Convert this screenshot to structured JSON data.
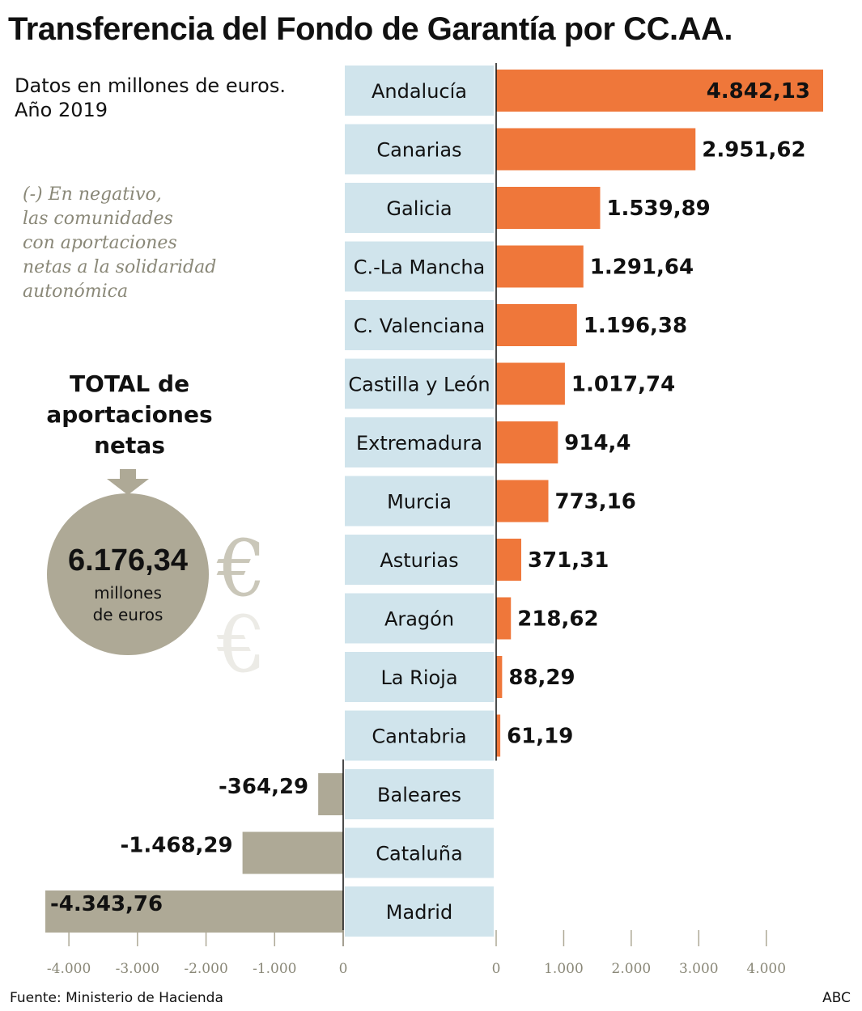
{
  "header": {
    "title": "Transferencia del Fondo de Garantía por CC.AA.",
    "subtitle_line1": "Datos en millones de euros.",
    "subtitle_line2": "Año 2019"
  },
  "note": {
    "line1": "(-) En negativo,",
    "line2": "las comunidades",
    "line3": "con aportaciones",
    "line4": "netas a la solidaridad",
    "line5": "autonómica"
  },
  "total": {
    "line1": "TOTAL de",
    "line2": "aportaciones",
    "line3": "netas",
    "value": "6.176,34",
    "unit_line1": "millones",
    "unit_line2": "de euros",
    "symbol": "€"
  },
  "footer": {
    "source": "Fuente: Ministerio de Hacienda",
    "credit": "ABC"
  },
  "colors": {
    "positive": "#ef773a",
    "negative": "#aea996",
    "label_box": "#d0e4ec",
    "tick_text": "#8a8878"
  },
  "chart_data": {
    "type": "bar",
    "orientation": "horizontal",
    "categories": [
      "Andalucía",
      "Canarias",
      "Galicia",
      "C.-La Mancha",
      "C. Valenciana",
      "Castilla y León",
      "Extremadura",
      "Murcia",
      "Asturias",
      "Aragón",
      "La Rioja",
      "Cantabria",
      "Baleares",
      "Cataluña",
      "Madrid"
    ],
    "values": [
      4842.13,
      2951.62,
      1539.89,
      1291.64,
      1196.38,
      1017.74,
      914.4,
      773.16,
      371.31,
      218.62,
      88.29,
      61.19,
      -364.29,
      -1468.29,
      -4343.76
    ],
    "value_labels": [
      "4.842,13",
      "2.951,62",
      "1.539,89",
      "1.291,64",
      "1.196,38",
      "1.017,74",
      "914,4",
      "773,16",
      "371,31",
      "218,62",
      "88,29",
      "61,19",
      "-364,29",
      "-1.468,29",
      "-4.343,76"
    ],
    "positive_ticks": [
      0,
      1000,
      2000,
      3000,
      4000
    ],
    "positive_tick_labels": [
      "0",
      "1.000",
      "2.000",
      "3.000",
      "4.000"
    ],
    "negative_ticks": [
      -4000,
      -3000,
      -2000,
      -1000,
      0
    ],
    "negative_tick_labels": [
      "-4.000",
      "-3.000",
      "-2.000",
      "-1.000",
      "0"
    ],
    "xlim_positive": [
      0,
      4842.13
    ],
    "xlim_negative": [
      -4343.76,
      0
    ],
    "grid": false
  }
}
